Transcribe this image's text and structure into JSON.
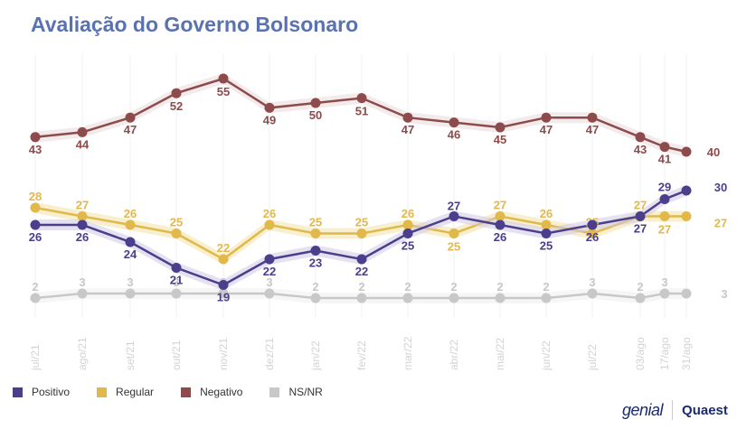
{
  "title": "Avaliação do Governo Bolsonaro",
  "chart_data": {
    "type": "line",
    "title": "Avaliação do Governo Bolsonaro",
    "x": [
      "jul/21",
      "ago/21",
      "set/21",
      "out/21",
      "nov/21",
      "dez/21",
      "jan/22",
      "fev/22",
      "mar/22",
      "abr/22",
      "mai/22",
      "jun/22",
      "jul/22",
      "03/ago",
      "17/ago",
      "31/ago"
    ],
    "series": [
      {
        "name": "Positivo",
        "color": "#4b3f8c",
        "values": [
          26,
          26,
          24,
          21,
          19,
          22,
          23,
          22,
          25,
          27,
          26,
          25,
          26,
          27,
          29,
          30
        ]
      },
      {
        "name": "Regular",
        "color": "#e0b94a",
        "values": [
          28,
          27,
          26,
          25,
          22,
          26,
          25,
          25,
          26,
          25,
          27,
          26,
          25,
          27,
          27,
          27
        ]
      },
      {
        "name": "Negativo",
        "color": "#8e4b4b",
        "values": [
          43,
          44,
          47,
          52,
          55,
          49,
          50,
          51,
          47,
          46,
          45,
          47,
          47,
          43,
          41,
          40
        ]
      },
      {
        "name": "NS/NR",
        "color": "#c8c8c8",
        "values": [
          2,
          3,
          3,
          3,
          3,
          3,
          2,
          2,
          2,
          2,
          2,
          2,
          3,
          2,
          3,
          3
        ]
      }
    ],
    "legend_position": "bottom-left",
    "grid": "vertical"
  },
  "legend": [
    {
      "label": "Positivo",
      "color": "#4b3f8c"
    },
    {
      "label": "Regular",
      "color": "#e0b94a"
    },
    {
      "label": "Negativo",
      "color": "#8e4b4b"
    },
    {
      "label": "NS/NR",
      "color": "#c8c8c8"
    }
  ],
  "logos": {
    "left": "genial",
    "right": "Quaest"
  }
}
